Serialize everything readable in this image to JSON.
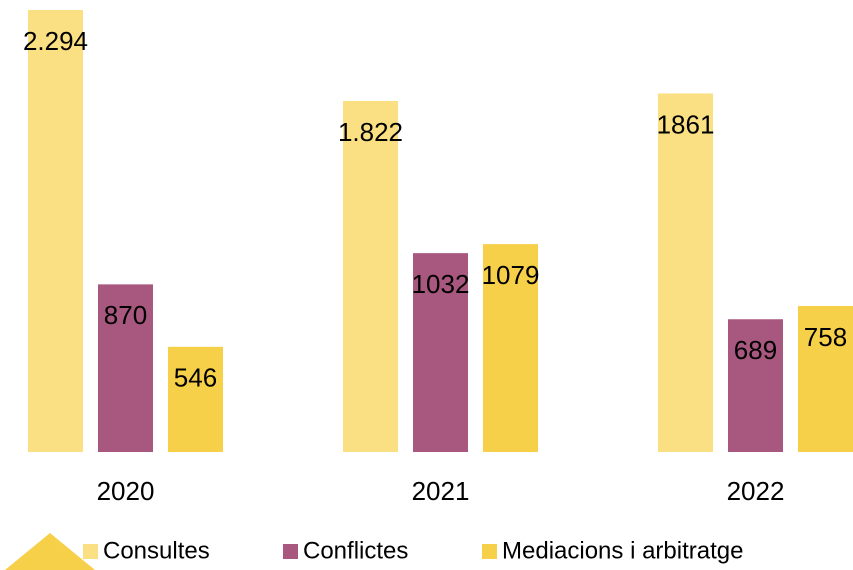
{
  "chart_data": {
    "type": "bar",
    "categories": [
      "2020",
      "2021",
      "2022"
    ],
    "series": [
      {
        "name": "Consultes",
        "color": "#fae083",
        "values": [
          2294,
          1822,
          1861
        ],
        "value_labels": [
          "2.294",
          "1.822",
          "1861"
        ]
      },
      {
        "name": "Conflictes",
        "color": "#a8577e",
        "values": [
          870,
          1032,
          689
        ]
      },
      {
        "name": "Mediacions i arbitratge",
        "color": "#f7d04a",
        "values": [
          546,
          1079,
          758
        ]
      }
    ],
    "legend": "bottom"
  }
}
